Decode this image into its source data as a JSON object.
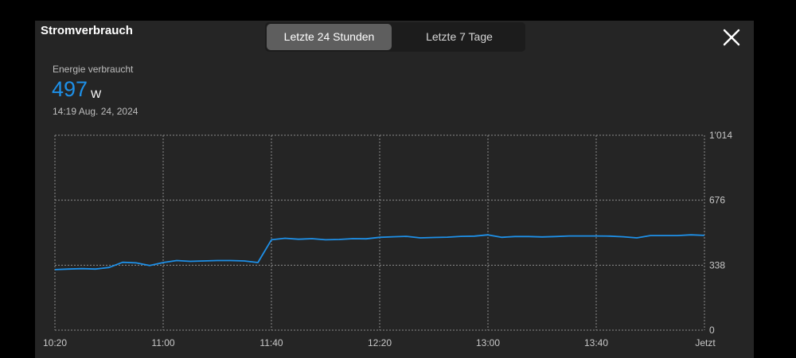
{
  "header": {
    "title": "Stromverbrauch",
    "tabs": [
      {
        "label": "Letzte 24 Stunden",
        "active": true
      },
      {
        "label": "Letzte 7 Tage",
        "active": false
      }
    ],
    "close_icon": "close-icon"
  },
  "summary": {
    "label": "Energie verbraucht",
    "value": "497",
    "unit": "W",
    "timestamp": "14:19  Aug. 24, 2024"
  },
  "chart_data": {
    "type": "line",
    "x_tick_labels": [
      "10:20",
      "11:00",
      "11:40",
      "12:20",
      "13:00",
      "13:40",
      "Jetzt"
    ],
    "y_tick_labels": [
      "1'014",
      "676",
      "338",
      "0"
    ],
    "ylim": [
      0,
      1014
    ],
    "xlim": [
      "10:20",
      "14:20"
    ],
    "grid": true,
    "line_color": "#1e90e8",
    "series": [
      {
        "x": [
          "10:20",
          "10:25",
          "10:30",
          "10:35",
          "10:40",
          "10:45",
          "10:50",
          "10:55",
          "11:00",
          "11:05",
          "11:10",
          "11:15",
          "11:20",
          "11:25",
          "11:30",
          "11:35",
          "11:40",
          "11:45",
          "11:50",
          "11:55",
          "12:00",
          "12:05",
          "12:10",
          "12:15",
          "12:20",
          "12:25",
          "12:30",
          "12:35",
          "12:40",
          "12:45",
          "12:50",
          "12:55",
          "13:00",
          "13:05",
          "13:10",
          "13:15",
          "13:20",
          "13:25",
          "13:30",
          "13:35",
          "13:40",
          "13:45",
          "13:50",
          "13:55",
          "14:00",
          "14:05",
          "14:10",
          "14:15",
          "14:20"
        ],
        "values": [
          315,
          318,
          320,
          318,
          326,
          353,
          350,
          336,
          352,
          362,
          358,
          360,
          362,
          362,
          360,
          352,
          470,
          478,
          473,
          476,
          470,
          472,
          476,
          475,
          483,
          486,
          488,
          480,
          482,
          484,
          488,
          489,
          496,
          483,
          487,
          487,
          485,
          487,
          490,
          490,
          490,
          489,
          486,
          480,
          492,
          492,
          492,
          496,
          493
        ]
      }
    ]
  }
}
